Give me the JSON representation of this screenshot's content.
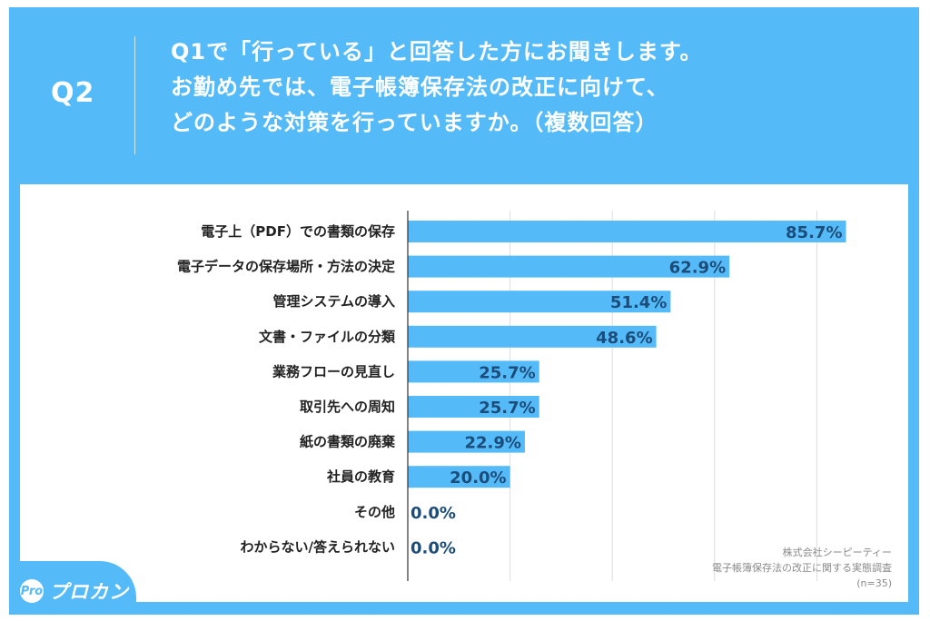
{
  "header": {
    "question_number": "Q2",
    "question_lines": [
      "Q1で「行っている」と回答した方にお聞きします。",
      "お勤め先では、電子帳簿保存法の改正に向けて、",
      "どのような対策を行っていますか。（複数回答）"
    ]
  },
  "logo": {
    "mark": "Pro",
    "text": "プロカン"
  },
  "source": {
    "company": "株式会社シーピーティー",
    "survey": "電子帳簿保存法の改正に関する実態調査",
    "sample": "(n=35)"
  },
  "colors": {
    "accent": "#55baf8",
    "bar": "#55baf8",
    "value_text": "#1c4d7a",
    "grid": "#dddddd"
  },
  "chart_data": {
    "type": "bar",
    "orientation": "horizontal",
    "title": "Q1で「行っている」と回答した方にお聞きします。お勤め先では、電子帳簿保存法の改正に向けて、どのような対策を行っていますか。（複数回答）",
    "xlabel": "",
    "ylabel": "",
    "categories": [
      "電子上（PDF）での書類の保存",
      "電子データの保存場所・方法の決定",
      "管理システムの導入",
      "文書・ファイルの分類",
      "業務フローの見直し",
      "取引先への周知",
      "紙の書類の廃棄",
      "社員の教育",
      "その他",
      "わからない/答えられない"
    ],
    "values": [
      85.7,
      62.9,
      51.4,
      48.6,
      25.7,
      25.7,
      22.9,
      20.0,
      0.0,
      0.0
    ],
    "value_labels": [
      "85.7%",
      "62.9%",
      "51.4%",
      "48.6%",
      "25.7%",
      "25.7%",
      "22.9%",
      "20.0%",
      "0.0%",
      "0.0%"
    ],
    "xlim": [
      0,
      100
    ],
    "gridlines_at": [
      20,
      40,
      60,
      80
    ],
    "grid": true,
    "unit": "%",
    "n": 35
  }
}
